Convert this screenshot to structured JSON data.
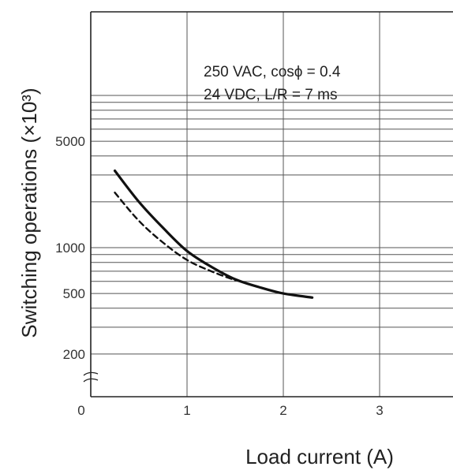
{
  "chart_data": {
    "type": "line",
    "xlabel": "Load current (A)",
    "ylabel": "Switching operations (×10³)",
    "x_ticks": [
      "0",
      "1",
      "2",
      "3"
    ],
    "y_ticks": [
      {
        "value": 5000,
        "label": "5000"
      },
      {
        "value": 1000,
        "label": "1000"
      },
      {
        "value": 500,
        "label": "500"
      },
      {
        "value": 200,
        "label": "200"
      }
    ],
    "y_scale": "log",
    "xlim": [
      0,
      3.8
    ],
    "grid": true,
    "annotations": [
      "250 VAC, cosϕ = 0.4",
      "24 VDC, L/R = 7 ms"
    ],
    "series": [
      {
        "style": "solid",
        "color": "#111111",
        "x": [
          0.25,
          0.5,
          0.75,
          1.0,
          1.25,
          1.5,
          1.75,
          2.0,
          2.3
        ],
        "y": [
          3200,
          2000,
          1350,
          950,
          750,
          620,
          550,
          500,
          470
        ]
      },
      {
        "style": "dashed",
        "color": "#111111",
        "x": [
          0.25,
          0.5,
          0.75,
          1.0,
          1.25,
          1.5
        ],
        "y": [
          2300,
          1500,
          1080,
          830,
          700,
          610
        ]
      }
    ]
  }
}
